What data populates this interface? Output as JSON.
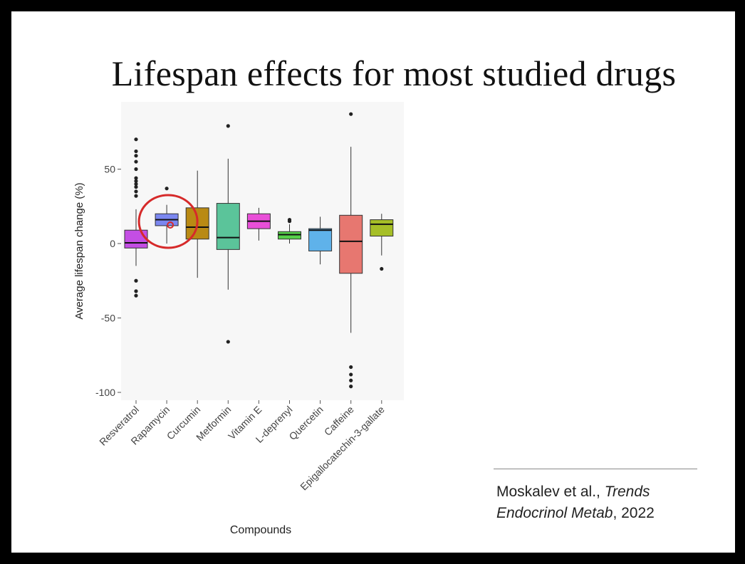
{
  "slide": {
    "title": "Lifespan effects for most studied drugs",
    "citation": {
      "authors": "Moskalev et al., ",
      "journal_line1": "Trends",
      "journal_line2": "Endocrinol Metab",
      "year_suffix": ", 2022"
    }
  },
  "chart_data": {
    "type": "boxplot",
    "title": "",
    "xlabel": "Compounds",
    "ylabel": "Average lifespan change (%)",
    "ylim": [
      -102,
      95
    ],
    "yticks": [
      -100,
      -50,
      0,
      50
    ],
    "ytick_labels": [
      "-100",
      "-50",
      "0",
      "50"
    ],
    "grid": false,
    "legend": "none",
    "categories": [
      "Resveratrol",
      "Rapamycin",
      "Curcumin",
      "Metformin",
      "Vitamin E",
      "L-deprenyl",
      "Quercetin",
      "Caffeine",
      "Epigallocatechin-3-gallate"
    ],
    "boxes": [
      {
        "name": "Resveratrol",
        "color": "#c44ee4",
        "whisker_low": -15,
        "q1": -3,
        "median": 0.5,
        "q3": 9,
        "whisker_high": 23,
        "outliers": [
          70,
          62,
          59,
          55,
          50,
          44,
          42,
          40,
          38,
          35,
          32,
          -25,
          -32,
          -35
        ]
      },
      {
        "name": "Rapamycin",
        "color": "#7b87f0",
        "whisker_low": 0,
        "q1": 12,
        "median": 16,
        "q3": 20,
        "whisker_high": 26,
        "outliers": [
          37
        ]
      },
      {
        "name": "Curcumin",
        "color": "#b98a14",
        "whisker_low": -23,
        "q1": 3,
        "median": 11,
        "q3": 24,
        "whisker_high": 49,
        "outliers": []
      },
      {
        "name": "Metformin",
        "color": "#5bc49a",
        "whisker_low": -31,
        "q1": -4,
        "median": 4,
        "q3": 27,
        "whisker_high": 57,
        "outliers": [
          79,
          -66
        ]
      },
      {
        "name": "Vitamin E",
        "color": "#e94fd8",
        "whisker_low": 2,
        "q1": 10,
        "median": 15,
        "q3": 20,
        "whisker_high": 24,
        "outliers": []
      },
      {
        "name": "L-deprenyl",
        "color": "#57d04a",
        "whisker_low": 0,
        "q1": 3,
        "median": 6,
        "q3": 8,
        "whisker_high": 13,
        "outliers": [
          16,
          15
        ]
      },
      {
        "name": "Quercetin",
        "color": "#5fb2ea",
        "whisker_low": -14,
        "q1": -5,
        "median": 9,
        "q3": 10,
        "whisker_high": 18,
        "outliers": []
      },
      {
        "name": "Caffeine",
        "color": "#e77770",
        "whisker_low": -60,
        "q1": -20,
        "median": 1.5,
        "q3": 19,
        "whisker_high": 65,
        "outliers": [
          87,
          -83,
          -88,
          -92,
          -96
        ]
      },
      {
        "name": "Epigallocatechin-3-gallate",
        "color": "#a6bf27",
        "whisker_low": -8,
        "q1": 5,
        "median": 13,
        "q3": 16,
        "whisker_high": 20,
        "outliers": [
          -17
        ]
      }
    ],
    "annotation": {
      "type": "circle",
      "target": "Rapamycin",
      "color": "#d62a2a"
    }
  }
}
